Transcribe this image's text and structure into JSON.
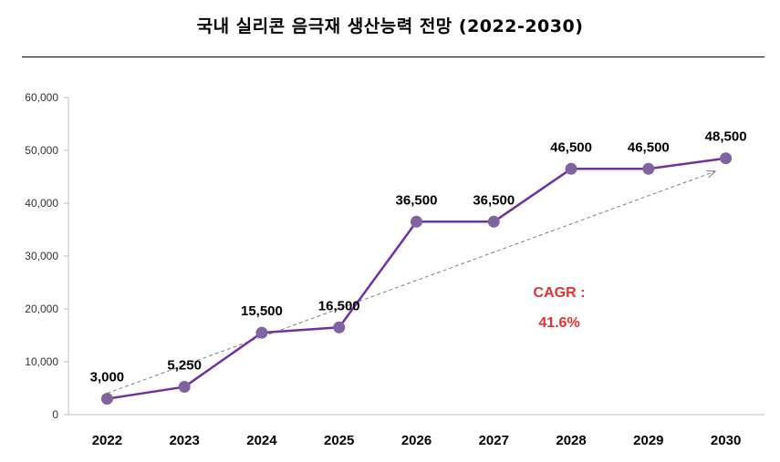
{
  "chart_data": {
    "type": "line",
    "title": "국내 실리콘 음극재 생산능력 전망 (2022-2030)",
    "categories": [
      "2022",
      "2023",
      "2024",
      "2025",
      "2026",
      "2027",
      "2028",
      "2029",
      "2030"
    ],
    "series": [
      {
        "values": [
          3000,
          5250,
          15500,
          16500,
          36500,
          36500,
          46500,
          46500,
          48500
        ],
        "data_labels": [
          "3,000",
          "5,250",
          "15,500",
          "16,500",
          "36,500",
          "36,500",
          "46,500",
          "46,500",
          "48,500"
        ],
        "color": "#7030a0",
        "marker_color": "#8064a2"
      }
    ],
    "trend_line": {
      "from": [
        2022,
        3000
      ],
      "to": [
        2030,
        46000
      ],
      "style": "dashed-arrow",
      "color": "#808080"
    },
    "ylim": [
      0,
      60000
    ],
    "yticks": [
      0,
      10000,
      20000,
      30000,
      40000,
      50000,
      60000
    ],
    "ytick_labels": [
      "0",
      "10,000",
      "20,000",
      "30,000",
      "40,000",
      "50,000",
      "60,000"
    ],
    "grid": false,
    "annotation": {
      "line1": "CAGR :",
      "line2": "41.6%",
      "color": "#e8312f"
    }
  }
}
